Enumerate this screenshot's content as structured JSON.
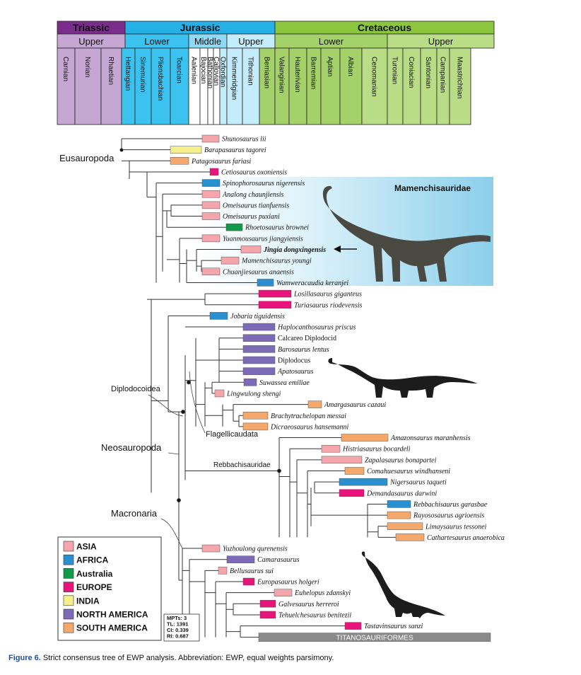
{
  "timescale": {
    "periods": [
      {
        "name": "Triassic",
        "color": "#7b2d8e"
      },
      {
        "name": "Jurassic",
        "color": "#25b0e6"
      },
      {
        "name": "Cretaceous",
        "color": "#8cc63f"
      }
    ],
    "epochs": [
      {
        "name": "Upper",
        "color": "#c6a7d4"
      },
      {
        "name": "Lower",
        "color": "#3cc2ef"
      },
      {
        "name": "Middle",
        "color": "#90d9f5"
      },
      {
        "name": "Upper",
        "color": "#c5ecfb"
      },
      {
        "name": "Lower",
        "color": "#a5d16a"
      },
      {
        "name": "Upper",
        "color": "#b9dc87"
      }
    ],
    "stages": [
      "Carnian",
      "Norian",
      "Rhaetian",
      "Hettangian",
      "Sinemurian",
      "Pliensbachian",
      "Toarcian",
      "Aalenian",
      "Bajocian",
      "Bathonian",
      "Callovian",
      "Oxfordian",
      "Kimmeridgian",
      "Tithonian",
      "Berriasian",
      "Valanginian",
      "Hauterivian",
      "Barremian",
      "Aptian",
      "Albian",
      "Cenomanian",
      "Turonian",
      "Coniacian",
      "Santonian",
      "Campanian",
      "Maastrichtian"
    ]
  },
  "clades": {
    "eusauropoda": "Eusauropoda",
    "mamenchisauridae": "Mamenchisauridae",
    "diplodocoidea": "Diplodocoidea",
    "flagellicaudata": "Flagellicaudata",
    "neosauropoda": "Neosauropoda",
    "rebbachisauridae": "Rebbachisauridae",
    "macronaria": "Macronaria",
    "titanosauriformes": "TITANOSAURIFORMES"
  },
  "taxa": [
    {
      "name": "Shunosaurus lii",
      "region": "ASIA"
    },
    {
      "name": "Barapasaurus tagorei",
      "region": "INDIA"
    },
    {
      "name": "Patagosaurus fariasi",
      "region": "SOUTH AMERICA"
    },
    {
      "name": "Cetiosaurus oxoniensis",
      "region": "EUROPE"
    },
    {
      "name": "Spinophorosaurus nigerensis",
      "region": "AFRICA"
    },
    {
      "name": "Analong chaunjiensis",
      "region": "ASIA"
    },
    {
      "name": "Omeisaurus tianfuensis",
      "region": "ASIA"
    },
    {
      "name": "Omeisaurus puxiani",
      "region": "ASIA"
    },
    {
      "name": "Rhoetosaurus brownei",
      "region": "Australia"
    },
    {
      "name": "Yuanmousaurus jiangyiensis",
      "region": "ASIA"
    },
    {
      "name": "Jingia dongxingensis",
      "region": "ASIA"
    },
    {
      "name": "Mamenchisaurus youngi",
      "region": "ASIA"
    },
    {
      "name": "Chuanjiesaurus anaensis",
      "region": "ASIA"
    },
    {
      "name": "Wamweracaudia keranjei",
      "region": "AFRICA"
    },
    {
      "name": "Losillasaurus giganteus",
      "region": "EUROPE"
    },
    {
      "name": "Turiasaurus riodevensis",
      "region": "EUROPE"
    },
    {
      "name": "Jobaria tiguidensis",
      "region": "AFRICA"
    },
    {
      "name": "Haplocanthosaurus priscus",
      "region": "NORTH AMERICA"
    },
    {
      "name": "Calcareo Diplodocid",
      "region": "NORTH AMERICA"
    },
    {
      "name": "Barosaurus lentus",
      "region": "NORTH AMERICA"
    },
    {
      "name": "Diplodocus",
      "region": "NORTH AMERICA"
    },
    {
      "name": "Apatosaurus",
      "region": "NORTH AMERICA"
    },
    {
      "name": "Suwassea emiliae",
      "region": "NORTH AMERICA"
    },
    {
      "name": "Lingwulong shengi",
      "region": "ASIA"
    },
    {
      "name": "Amargasaurus cazaui",
      "region": "SOUTH AMERICA"
    },
    {
      "name": "Brachytrachelopan messai",
      "region": "SOUTH AMERICA"
    },
    {
      "name": "Dicraeosaurus hansemanni",
      "region": "SOUTH AMERICA"
    },
    {
      "name": "Amazonsaurus maranhensis",
      "region": "SOUTH AMERICA"
    },
    {
      "name": "Histriasaurus bocardeli",
      "region": "ASIA"
    },
    {
      "name": "Zapalasaurus bonapartei",
      "region": "ASIA"
    },
    {
      "name": "Comahuesaurus windhanseni",
      "region": "SOUTH AMERICA"
    },
    {
      "name": "Nigersaurus taqueti",
      "region": "AFRICA"
    },
    {
      "name": "Demandasaurus darwini",
      "region": "EUROPE"
    },
    {
      "name": "Rebbachisaurus garasbae",
      "region": "AFRICA"
    },
    {
      "name": "Rayososaurus agrioensis",
      "region": "SOUTH AMERICA"
    },
    {
      "name": "Limaysaurus tessonei",
      "region": "SOUTH AMERICA"
    },
    {
      "name": "Cathartesaurus anaerobica",
      "region": "SOUTH AMERICA"
    },
    {
      "name": "Yuzhoulong qurenensis",
      "region": "ASIA"
    },
    {
      "name": "Camarasaurus",
      "region": "NORTH AMERICA"
    },
    {
      "name": "Bellusaurus sui",
      "region": "ASIA"
    },
    {
      "name": "Europasaurus holgeri",
      "region": "EUROPE"
    },
    {
      "name": "Euhelopus zdanskyi",
      "region": "ASIA"
    },
    {
      "name": "Galvesaurus herreroi",
      "region": "EUROPE"
    },
    {
      "name": "Tehuelchesaurus benitezii",
      "region": "EUROPE"
    },
    {
      "name": "Tastavinsaurus sanzi",
      "region": "EUROPE"
    }
  ],
  "legend": [
    {
      "label": "ASIA",
      "color": "#f4a6ac"
    },
    {
      "label": "AFRICA",
      "color": "#2a8fd1"
    },
    {
      "label": "Australia",
      "color": "#119a48"
    },
    {
      "label": "EUROPE",
      "color": "#e8137b"
    },
    {
      "label": "INDIA",
      "color": "#f6ef8a"
    },
    {
      "label": "NORTH AMERICA",
      "color": "#7b6bb6"
    },
    {
      "label": "SOUTH AMERICA",
      "color": "#f5a86b"
    }
  ],
  "stats": [
    "MPTs: 3",
    "TL: 1391",
    "CI: 0.339",
    "RI: 0.687"
  ],
  "caption": {
    "label": "Figure 6.",
    "text": " Strict consensus tree of EWP analysis. Abbreviation: EWP, equal weights parsimony."
  }
}
